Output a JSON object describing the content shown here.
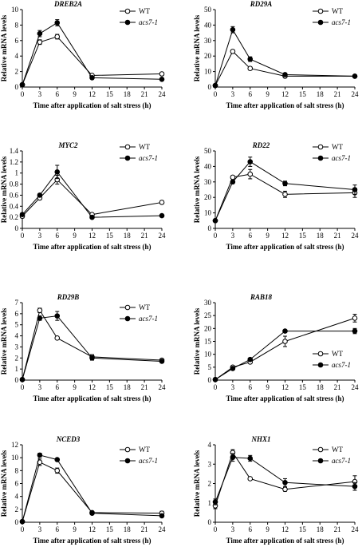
{
  "chart_data": [
    {
      "type": "line",
      "title": "DREB2A",
      "xlabel": "Time after application of salt stress (h)",
      "ylabel": "Relative mRNA levels",
      "x": [
        0,
        3,
        6,
        12,
        24
      ],
      "xticks": [
        "0",
        "3",
        "6",
        "9",
        "12",
        "15",
        "18",
        "21",
        "24"
      ],
      "xlim": [
        0,
        24
      ],
      "ylim": [
        0,
        10
      ],
      "yticks": [
        "0",
        "2",
        "4",
        "6",
        "8",
        "10"
      ],
      "legend_position": "top-right",
      "series": [
        {
          "name": "WT",
          "marker": "open-circle",
          "values": [
            0.3,
            5.8,
            6.5,
            1.5,
            1.7
          ],
          "errors": [
            0.1,
            0.3,
            0.3,
            0.1,
            0.2
          ]
        },
        {
          "name": "acs7-1",
          "marker": "filled-circle",
          "values": [
            0.3,
            6.9,
            8.3,
            1.2,
            1.0
          ],
          "errors": [
            0.1,
            0.4,
            0.4,
            0.1,
            0.1
          ]
        }
      ]
    },
    {
      "type": "line",
      "title": "RD29A",
      "xlabel": "Time after application of salt stress (h)",
      "ylabel": "Relative mRNA levels",
      "x": [
        0,
        3,
        6,
        12,
        24
      ],
      "xticks": [
        "0",
        "3",
        "6",
        "9",
        "12",
        "15",
        "18",
        "21",
        "24"
      ],
      "xlim": [
        0,
        24
      ],
      "ylim": [
        0,
        50
      ],
      "yticks": [
        "0",
        "10",
        "20",
        "30",
        "40",
        "50"
      ],
      "legend_position": "top-right",
      "series": [
        {
          "name": "WT",
          "marker": "open-circle",
          "values": [
            1,
            23,
            12,
            7,
            7
          ],
          "errors": [
            0.5,
            1,
            1,
            1,
            0.5
          ]
        },
        {
          "name": "acs7-1",
          "marker": "filled-circle",
          "values": [
            1,
            37,
            18,
            8,
            7
          ],
          "errors": [
            0.5,
            2,
            1.5,
            1,
            0.5
          ]
        }
      ]
    },
    {
      "type": "line",
      "title": "MYC2",
      "xlabel": "Time after application of salt stress (h)",
      "ylabel": "Relative mRNA levels",
      "x": [
        0,
        3,
        6,
        12,
        24
      ],
      "xticks": [
        "0",
        "3",
        "6",
        "9",
        "12",
        "15",
        "18",
        "21",
        "24"
      ],
      "xlim": [
        0,
        24
      ],
      "ylim": [
        0,
        1.4
      ],
      "yticks": [
        "0",
        "0.2",
        "0.4",
        "0.6",
        "0.8",
        "1",
        "1.2",
        "1.4"
      ],
      "legend_position": "top-right",
      "series": [
        {
          "name": "WT",
          "marker": "open-circle",
          "values": [
            0.22,
            0.55,
            0.88,
            0.25,
            0.47
          ],
          "errors": [
            0.03,
            0.03,
            0.08,
            0.02,
            0.03
          ]
        },
        {
          "name": "acs7-1",
          "marker": "filled-circle",
          "values": [
            0.25,
            0.6,
            1.02,
            0.2,
            0.23
          ],
          "errors": [
            0.03,
            0.03,
            0.12,
            0.02,
            0.02
          ]
        }
      ]
    },
    {
      "type": "line",
      "title": "RD22",
      "xlabel": "Time after application of salt stress (h)",
      "ylabel": "Relative mRNA levels",
      "x": [
        0,
        3,
        6,
        12,
        24
      ],
      "xticks": [
        "0",
        "3",
        "6",
        "9",
        "12",
        "15",
        "18",
        "21",
        "24"
      ],
      "xlim": [
        0,
        24
      ],
      "ylim": [
        0,
        50
      ],
      "yticks": [
        "0",
        "10",
        "20",
        "30",
        "40",
        "50"
      ],
      "legend_position": "top-right",
      "series": [
        {
          "name": "WT",
          "marker": "open-circle",
          "values": [
            5,
            33,
            35,
            22,
            23
          ],
          "errors": [
            0.5,
            1,
            3,
            2,
            3
          ]
        },
        {
          "name": "acs7-1",
          "marker": "filled-circle",
          "values": [
            5,
            30,
            43,
            29,
            25
          ],
          "errors": [
            0.5,
            1,
            3,
            1.5,
            3
          ]
        }
      ]
    },
    {
      "type": "line",
      "title": "RD29B",
      "xlabel": "Time after application of salt stress (h)",
      "ylabel": "Relative mRNA levels",
      "x": [
        0,
        3,
        6,
        12,
        24
      ],
      "xticks": [
        "0",
        "3",
        "6",
        "9",
        "12",
        "15",
        "18",
        "21",
        "24"
      ],
      "xlim": [
        0,
        24
      ],
      "ylim": [
        0,
        7
      ],
      "yticks": [
        "0",
        "1",
        "2",
        "3",
        "4",
        "5",
        "6",
        "7"
      ],
      "legend_position": "top-right",
      "series": [
        {
          "name": "WT",
          "marker": "open-circle",
          "values": [
            0.05,
            6.3,
            3.8,
            2.1,
            1.8
          ],
          "errors": [
            0.02,
            0.2,
            0.1,
            0.2,
            0.1
          ]
        },
        {
          "name": "acs7-1",
          "marker": "filled-circle",
          "values": [
            0.05,
            5.6,
            5.8,
            2.0,
            1.7
          ],
          "errors": [
            0.02,
            0.2,
            0.4,
            0.2,
            0.1
          ]
        }
      ]
    },
    {
      "type": "line",
      "title": "RAB18",
      "xlabel": "Time after application of salt stress (h)",
      "ylabel": "Relative mRNA levels",
      "x": [
        0,
        3,
        6,
        12,
        24
      ],
      "xticks": [
        "0",
        "3",
        "6",
        "9",
        "12",
        "15",
        "18",
        "21",
        "24"
      ],
      "xlim": [
        0,
        24
      ],
      "ylim": [
        0,
        30
      ],
      "yticks": [
        "0",
        "5",
        "10",
        "15",
        "20",
        "25",
        "30"
      ],
      "legend_position": "right",
      "series": [
        {
          "name": "WT",
          "marker": "open-circle",
          "values": [
            0.2,
            5,
            7,
            15,
            24
          ],
          "errors": [
            0.1,
            0.5,
            0.5,
            2,
            1.5
          ]
        },
        {
          "name": "acs7-1",
          "marker": "filled-circle",
          "values": [
            0.2,
            4.5,
            8,
            19,
            19
          ],
          "errors": [
            0.1,
            0.3,
            0.5,
            0.5,
            1
          ]
        }
      ]
    },
    {
      "type": "line",
      "title": "NCED3",
      "xlabel": "Time after application of salt stress (h)",
      "ylabel": "Relative mRNA levels",
      "x": [
        0,
        3,
        6,
        12,
        24
      ],
      "xticks": [
        "0",
        "3",
        "6",
        "9",
        "12",
        "15",
        "18",
        "21",
        "24"
      ],
      "xlim": [
        0,
        24
      ],
      "ylim": [
        0,
        12
      ],
      "yticks": [
        "0",
        "2",
        "4",
        "6",
        "8",
        "10",
        "12"
      ],
      "legend_position": "top-right",
      "series": [
        {
          "name": "WT",
          "marker": "open-circle",
          "values": [
            0.1,
            9.3,
            8.0,
            1.5,
            1.4
          ],
          "errors": [
            0.05,
            0.5,
            0.4,
            0.1,
            0.3
          ]
        },
        {
          "name": "acs7-1",
          "marker": "filled-circle",
          "values": [
            0.1,
            10.4,
            9.7,
            1.4,
            1.0
          ],
          "errors": [
            0.05,
            0.3,
            0.2,
            0.1,
            0.1
          ]
        }
      ]
    },
    {
      "type": "line",
      "title": "NHX1",
      "xlabel": "Time after application of salt stress (h)",
      "ylabel": "Relative mRNA levels",
      "x": [
        0,
        3,
        6,
        12,
        24
      ],
      "xticks": [
        "0",
        "3",
        "6",
        "9",
        "12",
        "15",
        "18",
        "21",
        "24"
      ],
      "xlim": [
        0,
        24
      ],
      "ylim": [
        0,
        4
      ],
      "yticks": [
        "0",
        "1",
        "2",
        "3",
        "4"
      ],
      "legend_position": "top-right",
      "series": [
        {
          "name": "WT",
          "marker": "open-circle",
          "values": [
            0.85,
            3.6,
            2.25,
            1.7,
            2.1
          ],
          "errors": [
            0.15,
            0.15,
            0.05,
            0.1,
            0.3
          ]
        },
        {
          "name": "acs7-1",
          "marker": "filled-circle",
          "values": [
            1.05,
            3.35,
            3.3,
            2.05,
            1.85
          ],
          "errors": [
            0.15,
            0.2,
            0.15,
            0.2,
            0.2
          ]
        }
      ]
    }
  ]
}
